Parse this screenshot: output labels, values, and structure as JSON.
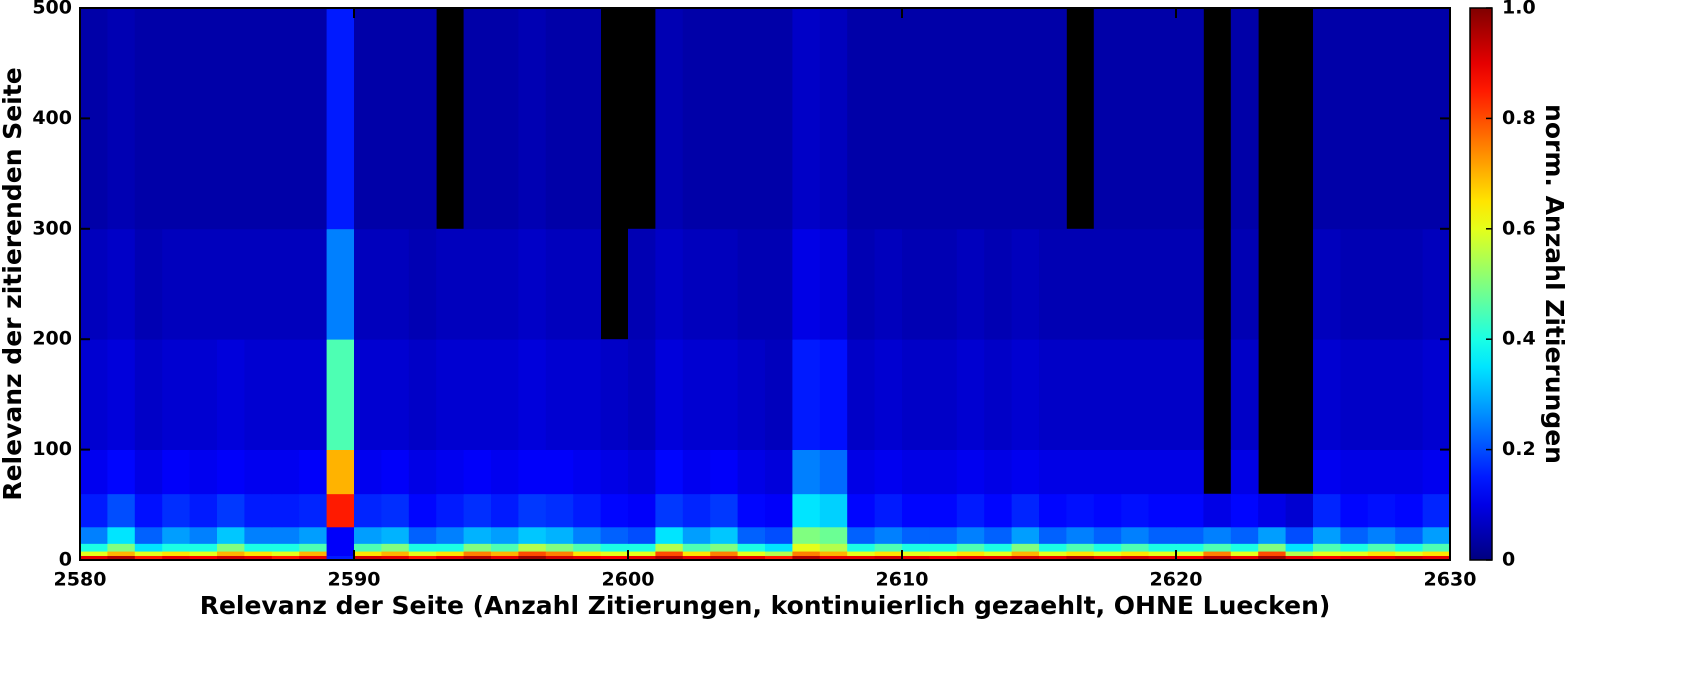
{
  "chart_data": {
    "type": "heatmap",
    "xlabel": "Relevanz der Seite (Anzahl Zitierungen, kontinuierlich gezaehlt, OHNE Luecken)",
    "ylabel": "Relevanz der zitierenden Seite",
    "colorbar_label": "norm. Anzahl Zitierungen",
    "colormap": "jet",
    "null_color": "#000000",
    "xlim": [
      2580,
      2630
    ],
    "ylim": [
      0,
      500
    ],
    "clim": [
      0,
      1
    ],
    "xticks": [
      2580,
      2590,
      2600,
      2610,
      2620,
      2630
    ],
    "yticks": [
      0,
      100,
      200,
      300,
      400,
      500
    ],
    "cticks": [
      0,
      0.2,
      0.4,
      0.6,
      0.8,
      {
        "value": 1,
        "label": "1.0"
      }
    ],
    "x_bins": [
      2580,
      2581,
      2582,
      2583,
      2584,
      2585,
      2586,
      2587,
      2588,
      2589,
      2590,
      2591,
      2592,
      2593,
      2594,
      2595,
      2596,
      2597,
      2598,
      2599,
      2600,
      2601,
      2602,
      2603,
      2604,
      2605,
      2606,
      2607,
      2608,
      2609,
      2610,
      2611,
      2612,
      2613,
      2614,
      2615,
      2616,
      2617,
      2618,
      2619,
      2620,
      2621,
      2622,
      2623,
      2624,
      2625,
      2626,
      2627,
      2628,
      2629,
      2630
    ],
    "y_bins": [
      0,
      4,
      8,
      15,
      30,
      60,
      100,
      200,
      300,
      500
    ],
    "z": [
      [
        0.9,
        0.95,
        0.85,
        0.9,
        0.88,
        0.92,
        0.9,
        0.85,
        0.9,
        0.15,
        0.92,
        0.9,
        0.85,
        0.9,
        0.95,
        0.9,
        0.97,
        0.92,
        0.9,
        0.88,
        0.9,
        0.95,
        0.9,
        0.93,
        0.9,
        0.85,
        0.95,
        0.9,
        0.9,
        0.92,
        0.9,
        0.88,
        0.9,
        0.9,
        0.92,
        0.9,
        0.95,
        0.9,
        0.92,
        0.9,
        0.88,
        0.95,
        0.9,
        0.97,
        0.9,
        0.88,
        0.9,
        0.9,
        0.92,
        0.9
      ],
      [
        0.6,
        0.7,
        0.6,
        0.65,
        0.6,
        0.7,
        0.65,
        0.6,
        0.7,
        0.12,
        0.65,
        0.7,
        0.6,
        0.65,
        0.75,
        0.7,
        0.8,
        0.75,
        0.65,
        0.6,
        0.6,
        0.8,
        0.65,
        0.75,
        0.6,
        0.55,
        0.75,
        0.7,
        0.6,
        0.65,
        0.6,
        0.6,
        0.65,
        0.6,
        0.7,
        0.6,
        0.65,
        0.6,
        0.65,
        0.6,
        0.6,
        0.75,
        0.6,
        0.8,
        0.55,
        0.6,
        0.6,
        0.65,
        0.6,
        0.65
      ],
      [
        0.4,
        0.5,
        0.35,
        0.4,
        0.4,
        0.5,
        0.4,
        0.4,
        0.45,
        0.12,
        0.45,
        0.5,
        0.4,
        0.4,
        0.5,
        0.45,
        0.55,
        0.5,
        0.45,
        0.4,
        0.4,
        0.55,
        0.45,
        0.5,
        0.4,
        0.35,
        0.6,
        0.55,
        0.4,
        0.45,
        0.4,
        0.4,
        0.45,
        0.4,
        0.5,
        0.4,
        0.45,
        0.4,
        0.45,
        0.4,
        0.4,
        0.45,
        0.4,
        0.5,
        0.35,
        0.45,
        0.4,
        0.45,
        0.4,
        0.45
      ],
      [
        0.25,
        0.35,
        0.22,
        0.28,
        0.25,
        0.32,
        0.25,
        0.25,
        0.28,
        0.12,
        0.28,
        0.3,
        0.22,
        0.25,
        0.3,
        0.28,
        0.32,
        0.3,
        0.25,
        0.22,
        0.2,
        0.35,
        0.28,
        0.32,
        0.22,
        0.2,
        0.5,
        0.48,
        0.22,
        0.25,
        0.22,
        0.22,
        0.25,
        0.22,
        0.28,
        0.22,
        0.25,
        0.22,
        0.25,
        0.22,
        0.22,
        0.25,
        0.22,
        0.28,
        0.2,
        0.28,
        0.22,
        0.25,
        0.22,
        0.28
      ],
      [
        0.15,
        0.2,
        0.14,
        0.17,
        0.15,
        0.18,
        0.15,
        0.15,
        0.16,
        0.85,
        0.16,
        0.17,
        0.13,
        0.15,
        0.17,
        0.15,
        0.18,
        0.17,
        0.15,
        0.13,
        0.12,
        0.18,
        0.16,
        0.18,
        0.13,
        0.12,
        0.35,
        0.33,
        0.13,
        0.15,
        0.13,
        0.13,
        0.15,
        0.13,
        0.16,
        0.13,
        0.14,
        0.13,
        0.14,
        0.13,
        0.13,
        0.1,
        0.13,
        0.1,
        0.08,
        0.16,
        0.13,
        0.14,
        0.13,
        0.16
      ],
      [
        0.11,
        0.13,
        0.1,
        0.12,
        0.11,
        0.12,
        0.11,
        0.11,
        0.12,
        0.7,
        0.11,
        0.12,
        0.1,
        0.11,
        0.12,
        0.11,
        0.12,
        0.12,
        0.11,
        0.1,
        0.09,
        0.13,
        0.11,
        0.12,
        0.1,
        0.09,
        0.25,
        0.23,
        0.1,
        0.11,
        0.1,
        0.1,
        0.11,
        0.1,
        0.11,
        0.1,
        0.1,
        0.1,
        0.1,
        0.1,
        0.1,
        null,
        0.1,
        null,
        null,
        0.11,
        0.1,
        0.1,
        0.1,
        0.11
      ],
      [
        0.08,
        0.09,
        0.07,
        0.08,
        0.08,
        0.09,
        0.08,
        0.08,
        0.08,
        0.45,
        0.08,
        0.08,
        0.07,
        0.08,
        0.08,
        0.08,
        0.09,
        0.08,
        0.08,
        0.07,
        0.06,
        0.09,
        0.08,
        0.08,
        0.07,
        0.06,
        0.15,
        0.14,
        0.07,
        0.08,
        0.07,
        0.07,
        0.08,
        0.07,
        0.08,
        0.07,
        0.07,
        0.07,
        0.07,
        0.07,
        0.07,
        null,
        0.07,
        null,
        null,
        0.08,
        0.07,
        0.07,
        0.07,
        0.08
      ],
      [
        0.06,
        0.07,
        0.05,
        0.06,
        0.06,
        0.06,
        0.06,
        0.06,
        0.06,
        0.25,
        0.06,
        0.06,
        0.05,
        0.06,
        0.06,
        0.06,
        0.07,
        0.06,
        0.06,
        null,
        0.05,
        0.07,
        0.06,
        0.06,
        0.05,
        0.05,
        0.1,
        0.09,
        0.05,
        0.06,
        0.05,
        0.05,
        0.06,
        0.05,
        0.06,
        0.05,
        0.05,
        0.05,
        0.05,
        0.05,
        0.05,
        null,
        0.05,
        null,
        null,
        0.06,
        0.05,
        0.05,
        0.05,
        0.06
      ],
      [
        0.04,
        0.05,
        0.04,
        0.04,
        0.04,
        0.04,
        0.04,
        0.04,
        0.04,
        0.15,
        0.04,
        0.04,
        0.04,
        null,
        0.04,
        0.04,
        0.05,
        0.04,
        0.04,
        null,
        null,
        0.05,
        0.04,
        0.04,
        0.04,
        0.04,
        0.07,
        0.06,
        0.04,
        0.04,
        0.04,
        0.04,
        0.04,
        0.04,
        0.04,
        0.04,
        null,
        0.04,
        0.04,
        0.04,
        0.04,
        null,
        0.04,
        null,
        null,
        0.04,
        0.04,
        0.04,
        0.04,
        0.04
      ]
    ]
  }
}
